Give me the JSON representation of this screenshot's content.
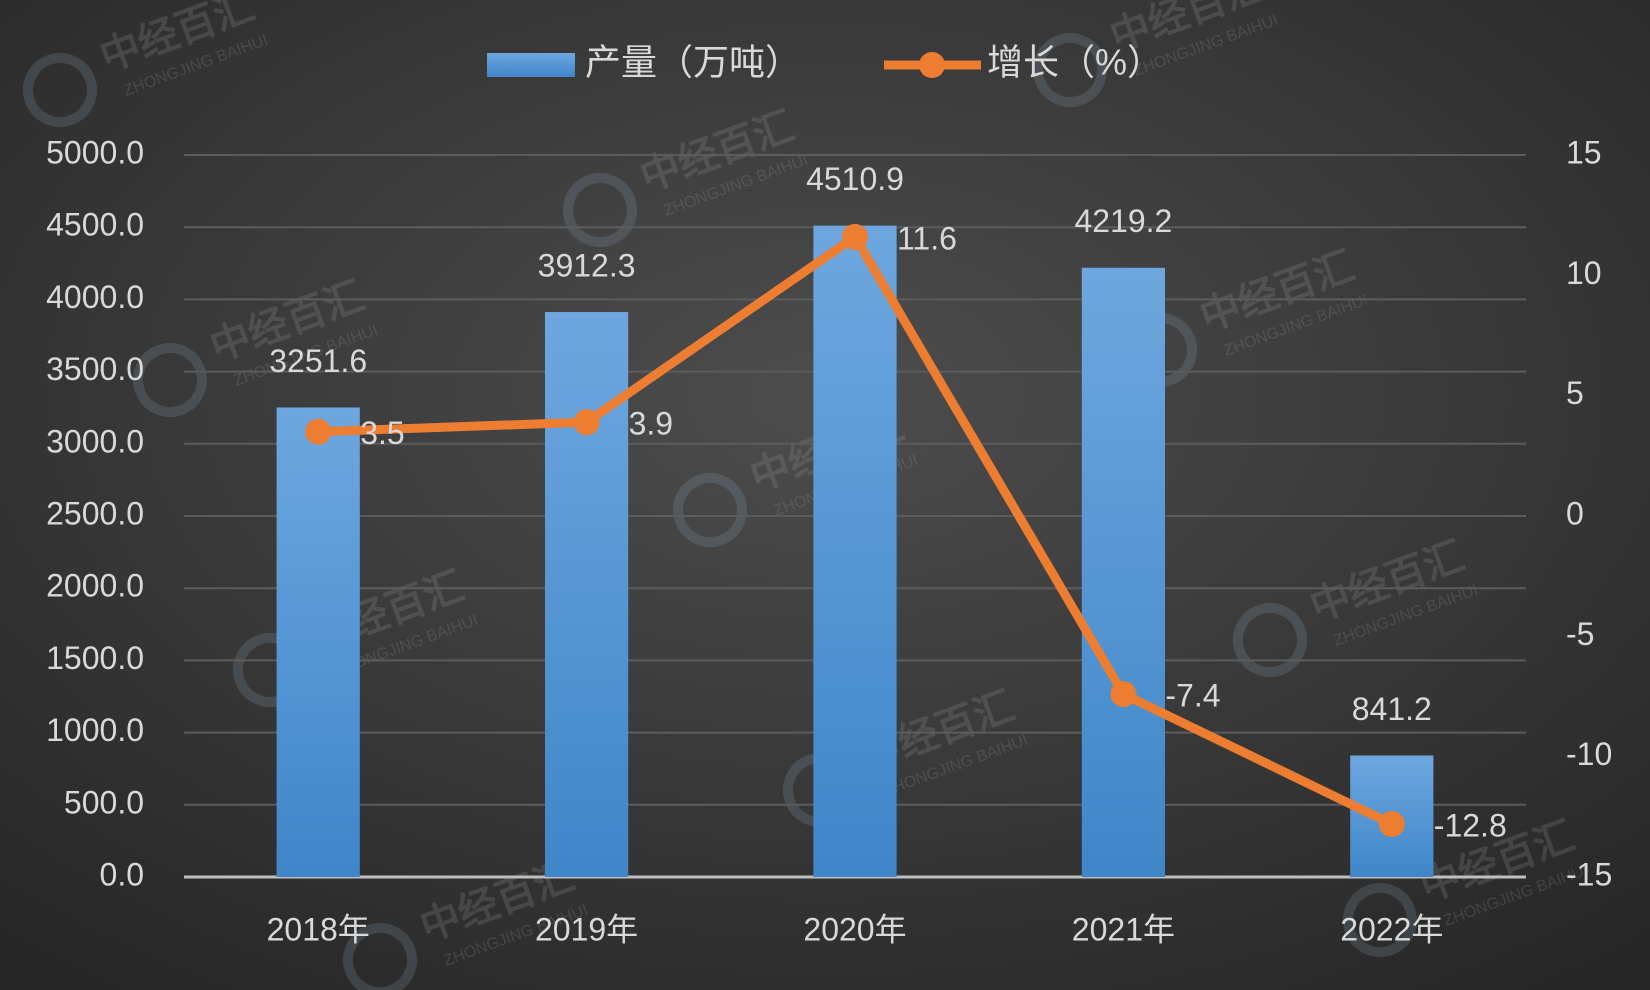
{
  "chart_data": {
    "type": "combo",
    "categories": [
      "2018年",
      "2019年",
      "2020年",
      "2021年",
      "2022年"
    ],
    "series": [
      {
        "name": "产量（万吨）",
        "type": "bar",
        "color": "#5b9bd5",
        "axis": "y",
        "values": [
          3251.6,
          3912.3,
          4510.9,
          4219.2,
          841.2
        ]
      },
      {
        "name": "增长（%）",
        "type": "line",
        "color": "#ed7d31",
        "axis": "y2",
        "values": [
          3.5,
          3.9,
          11.6,
          -7.4,
          -12.8
        ]
      }
    ],
    "ylim": [
      0,
      5000
    ],
    "yticks": [
      {
        "value": 0,
        "label": "0.0"
      },
      {
        "value": 500,
        "label": "500.0"
      },
      {
        "value": 1000,
        "label": "1000.0"
      },
      {
        "value": 1500,
        "label": "1500.0"
      },
      {
        "value": 2000,
        "label": "2000.0"
      },
      {
        "value": 2500,
        "label": "2500.0"
      },
      {
        "value": 3000,
        "label": "3000.0"
      },
      {
        "value": 3500,
        "label": "3500.0"
      },
      {
        "value": 4000,
        "label": "4000.0"
      },
      {
        "value": 4500,
        "label": "4500.0"
      },
      {
        "value": 5000,
        "label": "5000.0"
      }
    ],
    "y2lim": [
      -15,
      15
    ],
    "y2ticks": [
      -15,
      -10,
      -5,
      0,
      5,
      10,
      15
    ],
    "grid": true,
    "legend": "top",
    "watermark": [
      "中经百汇",
      "ZHONGJING BAIHUI"
    ]
  }
}
